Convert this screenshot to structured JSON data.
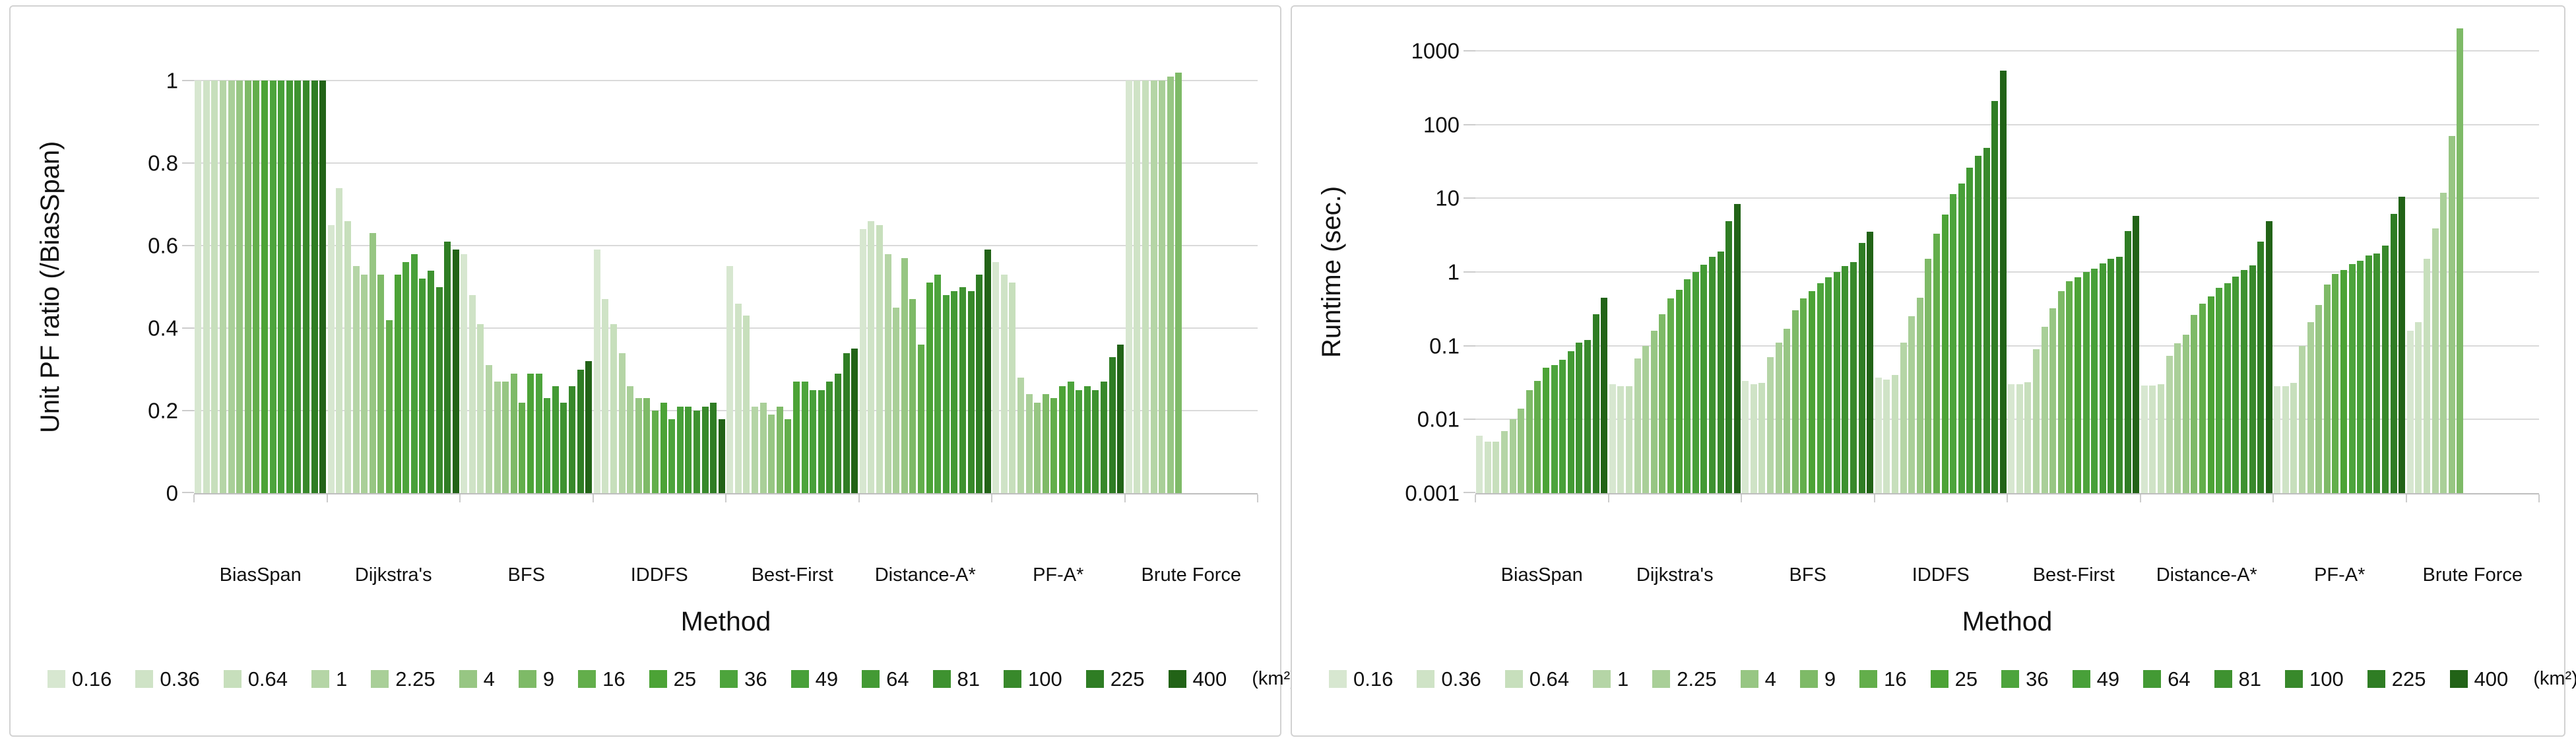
{
  "legend": {
    "labels": [
      "0.16",
      "0.36",
      "0.64",
      "1",
      "2.25",
      "4",
      "9",
      "16",
      "25",
      "36",
      "49",
      "64",
      "81",
      "100",
      "225",
      "400"
    ],
    "unit_suffix": "(km²)",
    "colors": [
      "#d7e7d0",
      "#cfe3c6",
      "#c7dfbc",
      "#b5d5a6",
      "#a9cf98",
      "#97c683",
      "#7eba67",
      "#63ae4b",
      "#4ca336",
      "#4da43c",
      "#48a039",
      "#439a34",
      "#3e9230",
      "#38892b",
      "#2f7d24",
      "#226317"
    ]
  },
  "chart_data": [
    {
      "type": "bar",
      "ylabel": "Unit PF ratio (/BiasSpan)",
      "xlabel": "Method",
      "yscale": "linear",
      "ylim": [
        0,
        1
      ],
      "grid": true,
      "legend_position": "bottom",
      "yticks": [
        {
          "value": 0,
          "label": "0"
        },
        {
          "value": 0.2,
          "label": "0.2"
        },
        {
          "value": 0.4,
          "label": "0.4"
        },
        {
          "value": 0.6,
          "label": "0.6"
        },
        {
          "value": 0.8,
          "label": "0.8"
        },
        {
          "value": 1,
          "label": "1"
        }
      ],
      "categories": [
        "BiasSpan",
        "Dijkstra's",
        "BFS",
        "IDDFS",
        "Best-First",
        "Distance-A*",
        "PF-A*",
        "Brute Force"
      ],
      "values_by_category": [
        [
          1,
          1,
          1,
          1,
          1,
          1,
          1,
          1,
          1,
          1,
          1,
          1,
          1,
          1,
          1,
          1
        ],
        [
          0.65,
          0.74,
          0.66,
          0.55,
          0.53,
          0.63,
          0.53,
          0.42,
          0.53,
          0.56,
          0.58,
          0.52,
          0.54,
          0.5,
          0.61,
          0.59
        ],
        [
          0.58,
          0.48,
          0.41,
          0.31,
          0.27,
          0.27,
          0.29,
          0.22,
          0.29,
          0.29,
          0.23,
          0.26,
          0.22,
          0.26,
          0.3,
          0.32
        ],
        [
          0.59,
          0.47,
          0.41,
          0.34,
          0.26,
          0.23,
          0.23,
          0.2,
          0.22,
          0.18,
          0.21,
          0.21,
          0.2,
          0.21,
          0.22,
          0.18
        ],
        [
          0.55,
          0.46,
          0.43,
          0.21,
          0.22,
          0.19,
          0.21,
          0.18,
          0.27,
          0.27,
          0.25,
          0.25,
          0.27,
          0.29,
          0.34,
          0.35
        ],
        [
          0.64,
          0.66,
          0.65,
          0.58,
          0.45,
          0.57,
          0.47,
          0.36,
          0.51,
          0.53,
          0.48,
          0.49,
          0.5,
          0.49,
          0.53,
          0.59
        ],
        [
          0.56,
          0.53,
          0.51,
          0.28,
          0.24,
          0.22,
          0.24,
          0.23,
          0.26,
          0.27,
          0.25,
          0.26,
          0.25,
          0.27,
          0.33,
          0.36
        ],
        [
          1.0,
          1.0,
          1.0,
          1.0,
          1.0,
          1.01,
          1.02
        ]
      ]
    },
    {
      "type": "bar",
      "ylabel": "Runtime (sec.)",
      "xlabel": "Method",
      "yscale": "log",
      "ylim": [
        0.001,
        1000
      ],
      "grid": true,
      "legend_position": "bottom",
      "yticks": [
        {
          "value": 0.001,
          "label": "0.001"
        },
        {
          "value": 0.01,
          "label": "0.01"
        },
        {
          "value": 0.1,
          "label": "0.1"
        },
        {
          "value": 1,
          "label": "1"
        },
        {
          "value": 10,
          "label": "10"
        },
        {
          "value": 100,
          "label": "100"
        },
        {
          "value": 1000,
          "label": "1000"
        }
      ],
      "categories": [
        "BiasSpan",
        "Dijkstra's",
        "BFS",
        "IDDFS",
        "Best-First",
        "Distance-A*",
        "PF-A*",
        "Brute Force"
      ],
      "values_by_category": [
        [
          0.006,
          0.005,
          0.005,
          0.007,
          0.01,
          0.014,
          0.025,
          0.033,
          0.05,
          0.055,
          0.065,
          0.085,
          0.11,
          0.12,
          0.27,
          0.45
        ],
        [
          0.03,
          0.028,
          0.028,
          0.067,
          0.1,
          0.16,
          0.27,
          0.44,
          0.57,
          0.79,
          1.0,
          1.26,
          1.6,
          1.9,
          4.9,
          8.3
        ],
        [
          0.033,
          0.03,
          0.031,
          0.07,
          0.11,
          0.17,
          0.3,
          0.44,
          0.55,
          0.7,
          0.85,
          1.0,
          1.2,
          1.35,
          2.5,
          3.5
        ],
        [
          0.037,
          0.035,
          0.04,
          0.11,
          0.25,
          0.45,
          1.5,
          3.3,
          6,
          11.5,
          16,
          26,
          38,
          48,
          210,
          540
        ],
        [
          0.03,
          0.03,
          0.032,
          0.09,
          0.18,
          0.32,
          0.55,
          0.75,
          0.85,
          1.0,
          1.1,
          1.3,
          1.5,
          1.6,
          3.6,
          5.8
        ],
        [
          0.029,
          0.029,
          0.03,
          0.073,
          0.107,
          0.14,
          0.26,
          0.37,
          0.47,
          0.61,
          0.71,
          0.87,
          1.07,
          1.23,
          2.6,
          4.9
        ],
        [
          0.028,
          0.028,
          0.031,
          0.1,
          0.21,
          0.36,
          0.68,
          0.94,
          1.07,
          1.28,
          1.42,
          1.67,
          1.8,
          2.3,
          6.1,
          10.4
        ],
        [
          0.16,
          0.21,
          1.5,
          3.9,
          12,
          70,
          2000
        ]
      ]
    }
  ]
}
